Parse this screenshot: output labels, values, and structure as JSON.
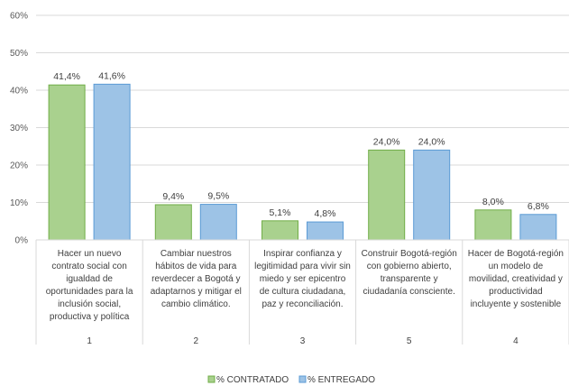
{
  "chart_data": {
    "type": "bar",
    "title": "",
    "xlabel": "",
    "ylabel": "",
    "ylim": [
      0,
      60
    ],
    "y_ticks": [
      "0%",
      "10%",
      "20%",
      "30%",
      "40%",
      "50%",
      "60%"
    ],
    "grid": true,
    "legend_position": "bottom",
    "categories": [
      {
        "label_lines": [
          "Hacer un nuevo",
          "contrato social con",
          "igualdad de",
          "oportunidades para la",
          "inclusión social,",
          "productiva y política"
        ],
        "number": "1"
      },
      {
        "label_lines": [
          "Cambiar nuestros",
          "hábitos de vida para",
          "reverdecer a Bogotá y",
          "adaptarnos y mitigar el",
          "cambio climático."
        ],
        "number": "2"
      },
      {
        "label_lines": [
          "Inspirar confianza y",
          "legitimidad para vivir sin",
          "miedo y ser epicentro",
          "de cultura ciudadana,",
          "paz y reconciliación."
        ],
        "number": "3"
      },
      {
        "label_lines": [
          "Construir Bogotá-región",
          "con gobierno abierto,",
          "transparente y",
          "ciudadanía consciente."
        ],
        "number": "5"
      },
      {
        "label_lines": [
          "Hacer de Bogotá-región",
          "un modelo de",
          "movilidad, creatividad y",
          "productividad",
          "incluyente y sostenible"
        ],
        "number": "4"
      }
    ],
    "series": [
      {
        "name": "% CONTRATADO",
        "color": "#a9d18e",
        "values": [
          41.4,
          9.4,
          5.1,
          24.0,
          8.0
        ],
        "labels": [
          "41,4%",
          "9,4%",
          "5,1%",
          "24,0%",
          "8,0%"
        ]
      },
      {
        "name": "% ENTREGADO",
        "color": "#9dc3e6",
        "values": [
          41.6,
          9.5,
          4.8,
          24.0,
          6.8
        ],
        "labels": [
          "41,6%",
          "9,5%",
          "4,8%",
          "24,0%",
          "6,8%"
        ]
      }
    ]
  }
}
